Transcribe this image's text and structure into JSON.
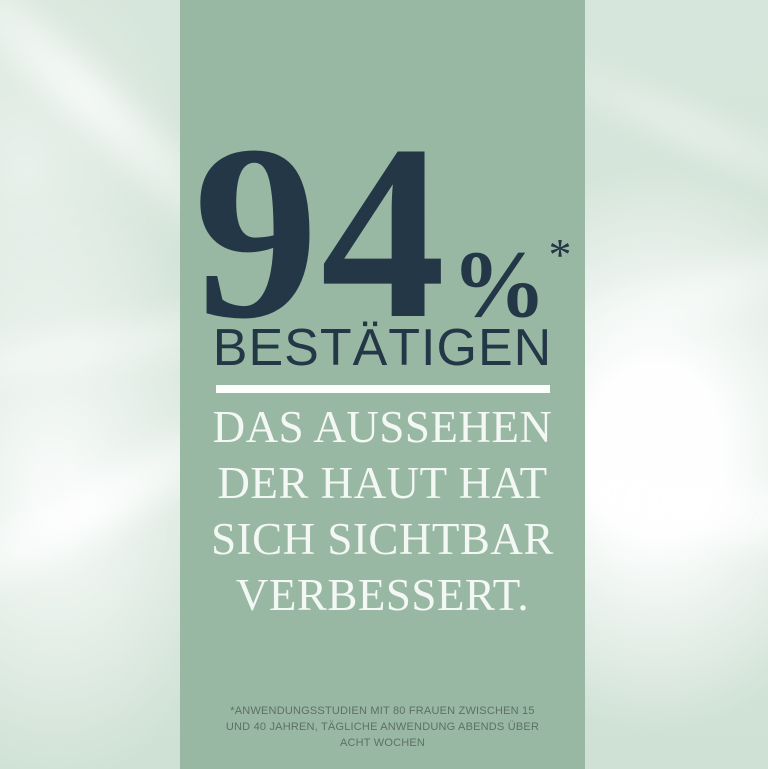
{
  "theme": {
    "panel_green": "#99b8a4",
    "outer_green": "#d5e4da",
    "dark_navy": "#233746",
    "white_text": "#f3f8f4",
    "footnote_green": "#5d7065",
    "rule_white": "#fdfffd"
  },
  "stat": {
    "value": "94",
    "percent_sign": "%",
    "asterisk": "*",
    "verb": "BESTÄTIGEN"
  },
  "headline": {
    "lines": [
      "DAS AUSSEHEN",
      "DER HAUT HAT",
      "SICH SICHTBAR",
      "VERBESSERT."
    ]
  },
  "footnote": {
    "lines": [
      "*ANWENDUNGSSTUDIEN MIT 80 FRAUEN ZWISCHEN 15",
      "UND 40 JAHREN, TÄGLICHE ANWENDUNG ABENDS ÜBER",
      "ACHT WOCHEN"
    ]
  }
}
